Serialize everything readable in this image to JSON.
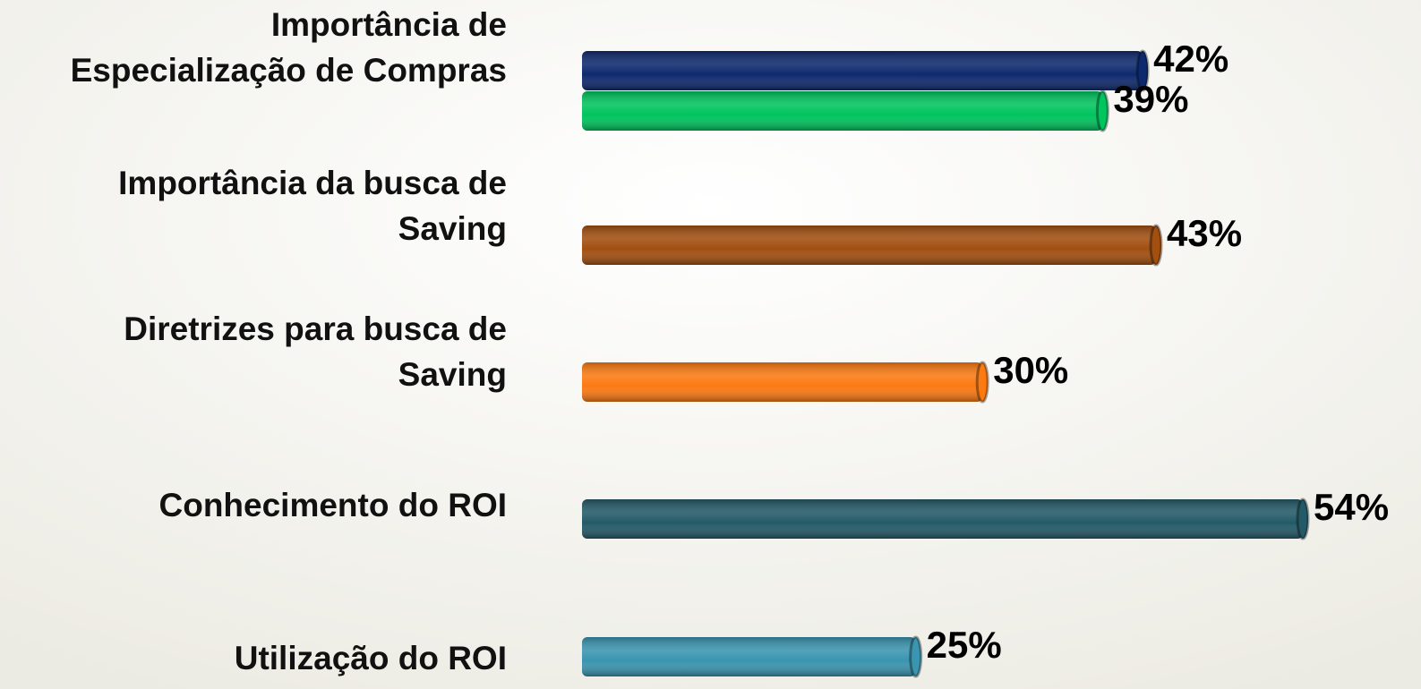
{
  "chart_data": {
    "type": "bar",
    "categories": [
      [
        "Importância de",
        "Especialização de Compras"
      ],
      [
        "Importância da busca de",
        "Saving"
      ],
      [
        "Diretrizes para busca de",
        "Saving"
      ],
      [
        "Conhecimento do ROI"
      ],
      [
        "Utilização do ROI"
      ]
    ],
    "values": [
      [
        42,
        39
      ],
      [
        43
      ],
      [
        30
      ],
      [
        54
      ],
      [
        25
      ]
    ],
    "value_labels": [
      [
        "42%",
        "39%"
      ],
      [
        "43%"
      ],
      [
        "30%"
      ],
      [
        "54%"
      ],
      [
        "25%"
      ]
    ],
    "colors": [
      [
        "#0e2a6e",
        "#00c45e"
      ],
      [
        "#a24f10"
      ],
      [
        "#fb7a12"
      ],
      [
        "#245a68"
      ],
      [
        "#3a95b0"
      ]
    ]
  }
}
